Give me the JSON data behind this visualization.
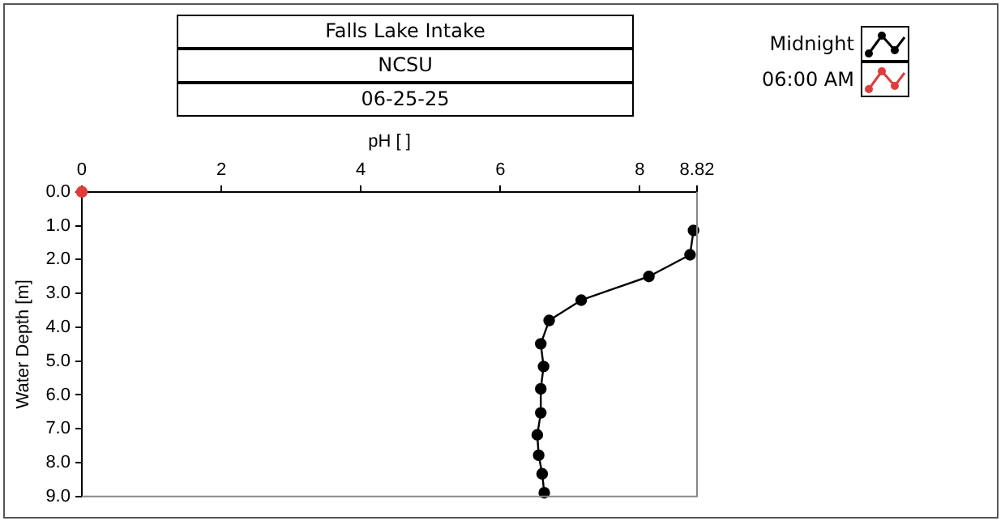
{
  "chart_data": {
    "type": "line",
    "title": "Falls Lake Intake",
    "subtitle": "NCSU",
    "annotations": [
      "06-25-25"
    ],
    "xlabel": "pH [ ]",
    "ylabel": "Water Depth [m]",
    "xlim": [
      0,
      8.82
    ],
    "xticks": [
      0,
      2,
      4,
      6,
      8,
      8.82
    ],
    "ylim": [
      9,
      0
    ],
    "yticks": [
      {
        "value": 0,
        "label": "0.0"
      },
      {
        "value": 1,
        "label": "1.0"
      },
      {
        "value": 2,
        "label": "2.0"
      },
      {
        "value": 3,
        "label": "3.0"
      },
      {
        "value": 4,
        "label": "4.0"
      },
      {
        "value": 5,
        "label": "5.0"
      },
      {
        "value": 6,
        "label": "6.0"
      },
      {
        "value": 7,
        "label": "7.0"
      },
      {
        "value": 8,
        "label": "8.0"
      },
      {
        "value": 9,
        "label": "9.0"
      }
    ],
    "grid": false,
    "legend": "top right",
    "marker": "circle",
    "line_style": "solid",
    "series": [
      {
        "name": "Midnight",
        "color": "#000000",
        "x": [
          8.77,
          8.72,
          8.13,
          7.16,
          6.7,
          6.58,
          6.62,
          6.58,
          6.58,
          6.53,
          6.55,
          6.6,
          6.63
        ],
        "values": [
          1.14,
          1.86,
          2.5,
          3.2,
          3.8,
          4.49,
          5.16,
          5.82,
          6.53,
          7.18,
          7.78,
          8.33,
          8.89
        ]
      },
      {
        "name": "06:00 AM",
        "color": "#e03c3c",
        "x": [
          0
        ],
        "values": [
          0
        ]
      }
    ]
  }
}
